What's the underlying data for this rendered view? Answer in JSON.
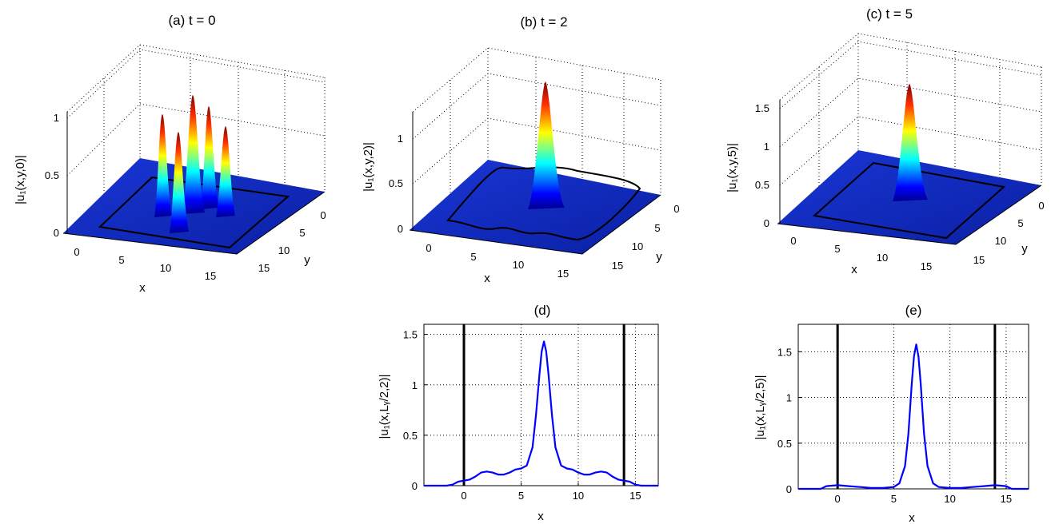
{
  "colors": {
    "curve": "#0000ff",
    "boundary": "#000000",
    "surface_low": "#00008f",
    "surface_high": "#800000"
  },
  "chart_data": [
    {
      "id": "a",
      "type": "surface3d",
      "title": "(a)   t = 0",
      "xlabel": "x",
      "ylabel": "y",
      "zlabel": "|u₁(x,y,0)|",
      "xticks": [
        "0",
        "5",
        "10",
        "15"
      ],
      "yticks": [
        "0",
        "5",
        "10",
        "15"
      ],
      "zticks": [
        "0",
        "0.5",
        "1"
      ],
      "xlim": [
        -2,
        17
      ],
      "ylim": [
        -2,
        17
      ],
      "zlim": [
        0,
        1
      ],
      "peaks": [
        {
          "x": 7,
          "y": 5,
          "z": 1.0
        },
        {
          "x": 5,
          "y": 4,
          "z": 0.82
        },
        {
          "x": 9,
          "y": 4,
          "z": 0.82
        },
        {
          "x": 5,
          "y": 9,
          "z": 0.82
        },
        {
          "x": 9,
          "y": 9,
          "z": 0.82
        }
      ],
      "boundary": "square contour, x and y from 0 to 14"
    },
    {
      "id": "b",
      "type": "surface3d",
      "title": "(b)   t = 2",
      "xlabel": "x",
      "ylabel": "y",
      "zlabel": "|u₁(x,y,2)|",
      "xticks": [
        "0",
        "5",
        "10",
        "15"
      ],
      "yticks": [
        "0",
        "5",
        "10",
        "15"
      ],
      "zticks": [
        "0",
        "0.5",
        "1"
      ],
      "xlim": [
        -2,
        17
      ],
      "ylim": [
        -2,
        17
      ],
      "zlim": [
        0,
        1.3
      ],
      "peaks": [
        {
          "x": 7,
          "y": 7,
          "z": 1.43
        }
      ],
      "boundary": "wavy contour around x and y from 0 to 14"
    },
    {
      "id": "c",
      "type": "surface3d",
      "title": "(c)   t = 5",
      "xlabel": "x",
      "ylabel": "y",
      "zlabel": "|u₁(x,y,5)|",
      "xticks": [
        "0",
        "5",
        "10",
        "15"
      ],
      "yticks": [
        "0",
        "5",
        "10",
        "15"
      ],
      "zticks": [
        "0",
        "0.5",
        "1",
        "1.5"
      ],
      "xlim": [
        -2,
        17
      ],
      "ylim": [
        -2,
        17
      ],
      "zlim": [
        0,
        1.8
      ],
      "peaks": [
        {
          "x": 7,
          "y": 7,
          "z": 1.58
        }
      ],
      "boundary": "square contour, x and y from 0 to 14"
    },
    {
      "id": "d",
      "type": "line",
      "title": "(d)",
      "xlabel": "x",
      "ylabel": "|u₁(x,Lᵧ/2,2)|",
      "xlim": [
        -3.5,
        17
      ],
      "ylim": [
        0,
        1.6
      ],
      "xticks": [
        0,
        5,
        10,
        15
      ],
      "yticks": [
        0,
        0.5,
        1,
        1.5
      ],
      "tick_labels_x": [
        "0",
        "5",
        "10",
        "15"
      ],
      "tick_labels_y": [
        "0",
        "0.5",
        "1",
        "1.5"
      ],
      "vlines": [
        0,
        14
      ],
      "grid": true,
      "x": [
        -3.5,
        -1.5,
        -1,
        -0.5,
        0,
        0.5,
        1,
        1.5,
        2,
        2.5,
        3,
        3.5,
        4,
        4.5,
        5,
        5.5,
        6,
        6.3,
        6.6,
        6.8,
        7,
        7.2,
        7.4,
        7.7,
        8,
        8.5,
        9,
        9.5,
        10,
        10.5,
        11,
        11.5,
        12,
        12.5,
        13,
        13.5,
        14,
        14.5,
        15,
        15.5,
        17
      ],
      "y": [
        0,
        0,
        0.01,
        0.04,
        0.05,
        0.06,
        0.09,
        0.13,
        0.14,
        0.13,
        0.11,
        0.11,
        0.13,
        0.16,
        0.17,
        0.2,
        0.38,
        0.7,
        1.1,
        1.33,
        1.43,
        1.33,
        1.1,
        0.7,
        0.38,
        0.2,
        0.17,
        0.16,
        0.13,
        0.11,
        0.11,
        0.13,
        0.14,
        0.13,
        0.09,
        0.06,
        0.05,
        0.04,
        0.01,
        0,
        0
      ]
    },
    {
      "id": "e",
      "type": "line",
      "title": "(e)",
      "xlabel": "x",
      "ylabel": "|u₁(x,Lᵧ/2,5)|",
      "xlim": [
        -3.5,
        17
      ],
      "ylim": [
        0,
        1.8
      ],
      "xticks": [
        0,
        5,
        10,
        15
      ],
      "yticks": [
        0,
        0.5,
        1,
        1.5
      ],
      "tick_labels_x": [
        "0",
        "5",
        "10",
        "15"
      ],
      "tick_labels_y": [
        "0",
        "0.5",
        "1",
        "1.5"
      ],
      "vlines": [
        0,
        14
      ],
      "grid": true,
      "x": [
        -3.5,
        -1.5,
        -1,
        0,
        1,
        2,
        3,
        4,
        5,
        5.5,
        6,
        6.3,
        6.6,
        6.8,
        7,
        7.2,
        7.4,
        7.7,
        8,
        8.5,
        9,
        10,
        11,
        12,
        13,
        14,
        15,
        15.5,
        17
      ],
      "y": [
        0,
        0,
        0.03,
        0.04,
        0.03,
        0.02,
        0.01,
        0.01,
        0.02,
        0.06,
        0.25,
        0.6,
        1.15,
        1.45,
        1.58,
        1.45,
        1.15,
        0.6,
        0.25,
        0.06,
        0.02,
        0.01,
        0.01,
        0.02,
        0.03,
        0.04,
        0.03,
        0,
        0
      ]
    }
  ]
}
